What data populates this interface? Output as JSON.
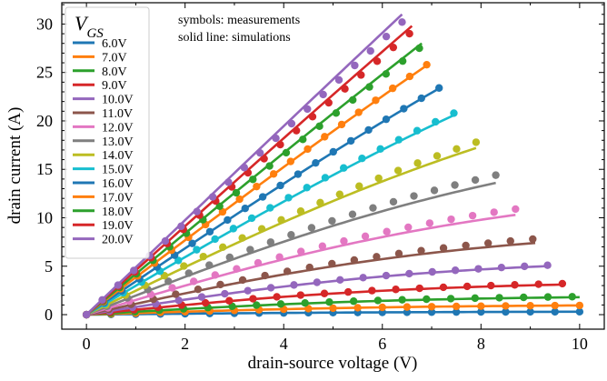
{
  "chart_data": {
    "type": "line",
    "xlabel": "drain-source voltage (V)",
    "ylabel": "drain current (A)",
    "xlim": [
      -0.5,
      10.5
    ],
    "ylim": [
      -1.5,
      32.2
    ],
    "xticks": [
      0,
      2,
      4,
      6,
      8,
      10
    ],
    "yticks": [
      0,
      5,
      10,
      15,
      20,
      25,
      30
    ],
    "grid": false,
    "legend": {
      "title": "V",
      "title_sub": "GS",
      "placement": "top-left"
    },
    "annotations": [
      "symbols: measurements",
      "solid line: simulations"
    ],
    "series": [
      {
        "name": "6.0V",
        "color": "#1f77b4",
        "sim_end_x": 10.0,
        "sim_end_y": 0.3,
        "meas_end_x": 10.0,
        "meas_end_y": 0.3,
        "k": 1.5
      },
      {
        "name": "7.0V",
        "color": "#ff7f0e",
        "sim_end_x": 10.0,
        "sim_end_y": 0.95,
        "meas_end_x": 10.0,
        "meas_end_y": 0.95,
        "k": 1.5
      },
      {
        "name": "8.0V",
        "color": "#2ca02c",
        "sim_end_x": 10.0,
        "sim_end_y": 1.8,
        "meas_end_x": 9.85,
        "meas_end_y": 1.85,
        "k": 1.5
      },
      {
        "name": "9.0V",
        "color": "#d62728",
        "sim_end_x": 9.6,
        "sim_end_y": 3.1,
        "meas_end_x": 9.65,
        "meas_end_y": 3.2,
        "k": 1.4
      },
      {
        "name": "10.0V",
        "color": "#9467bd",
        "sim_end_x": 9.3,
        "sim_end_y": 5.0,
        "meas_end_x": 9.35,
        "meas_end_y": 5.1,
        "k": 1.25
      },
      {
        "name": "11.0V",
        "color": "#8c564b",
        "sim_end_x": 9.1,
        "sim_end_y": 7.4,
        "meas_end_x": 9.05,
        "meas_end_y": 7.8,
        "k": 1.1
      },
      {
        "name": "12.0V",
        "color": "#e377c2",
        "sim_end_x": 8.7,
        "sim_end_y": 10.3,
        "meas_end_x": 8.7,
        "meas_end_y": 10.9,
        "k": 0.95
      },
      {
        "name": "13.0V",
        "color": "#7f7f7f",
        "sim_end_x": 8.3,
        "sim_end_y": 13.6,
        "meas_end_x": 8.3,
        "meas_end_y": 14.4,
        "k": 0.8
      },
      {
        "name": "14.0V",
        "color": "#bcbd22",
        "sim_end_x": 7.9,
        "sim_end_y": 17.2,
        "meas_end_x": 7.9,
        "meas_end_y": 17.8,
        "k": 0.65
      },
      {
        "name": "15.0V",
        "color": "#17becf",
        "sim_end_x": 7.5,
        "sim_end_y": 20.7,
        "meas_end_x": 7.45,
        "meas_end_y": 20.8,
        "k": 0.5
      },
      {
        "name": "16.0V",
        "color": "#1f77b4",
        "sim_end_x": 7.2,
        "sim_end_y": 23.5,
        "meas_end_x": 7.15,
        "meas_end_y": 23.4,
        "k": 0.4
      },
      {
        "name": "17.0V",
        "color": "#ff7f0e",
        "sim_end_x": 6.95,
        "sim_end_y": 25.9,
        "meas_end_x": 6.9,
        "meas_end_y": 25.8,
        "k": 0.32
      },
      {
        "name": "18.0V",
        "color": "#2ca02c",
        "sim_end_x": 6.8,
        "sim_end_y": 28.0,
        "meas_end_x": 6.75,
        "meas_end_y": 27.5,
        "k": 0.25
      },
      {
        "name": "19.0V",
        "color": "#d62728",
        "sim_end_x": 6.6,
        "sim_end_y": 29.8,
        "meas_end_x": 6.55,
        "meas_end_y": 29.0,
        "k": 0.2
      },
      {
        "name": "20.0V",
        "color": "#9467bd",
        "sim_end_x": 6.4,
        "sim_end_y": 31.0,
        "meas_end_x": 6.4,
        "meas_end_y": 30.2,
        "k": 0.15
      }
    ]
  }
}
